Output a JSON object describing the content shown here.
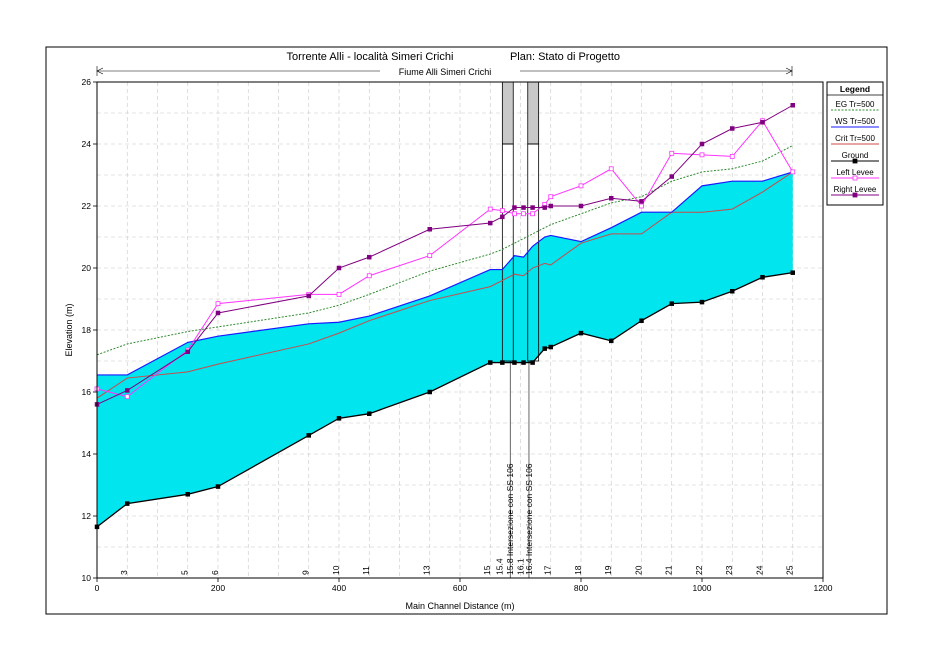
{
  "chart_data": {
    "type": "line",
    "title": "Torrente Alli - località Simeri Crichi",
    "plan_label": "Plan: Stato di Progetto",
    "reach_label": "Fiume Alli Simeri Crichi",
    "xlabel": "Main Channel Distance (m)",
    "ylabel": "Elevation (m)",
    "xlim": [
      0,
      1200
    ],
    "ylim": [
      10,
      26
    ],
    "x_ticks": [
      "0",
      "200",
      "400",
      "600",
      "800",
      "1000",
      "1200"
    ],
    "y_ticks": [
      "10",
      "12",
      "14",
      "16",
      "18",
      "20",
      "22",
      "24",
      "26"
    ],
    "grid": true,
    "legend_position": "right",
    "legend_title": "Legend",
    "colors": {
      "water": "#00e5ee",
      "ws_line": "#1a1aff",
      "eg": "#2e8b2e",
      "crit": "#cc4a4a",
      "ground": "#000000",
      "left_levee": "#ff33ff",
      "right_levee": "#800080",
      "bridge_fill": "#c8c8c8",
      "grid": "#c8c8c8"
    },
    "series": [
      {
        "name": "EG  Tr=500",
        "key": "eg",
        "style": "dotted",
        "x": [
          0,
          50,
          150,
          200,
          350,
          400,
          450,
          550,
          650,
          670,
          690,
          705,
          720,
          740,
          750,
          800,
          850,
          900,
          950,
          1000,
          1050,
          1100,
          1150
        ],
        "y": [
          17.2,
          17.55,
          17.95,
          18.1,
          18.55,
          18.8,
          19.15,
          19.9,
          20.45,
          20.6,
          20.8,
          20.95,
          21.1,
          21.3,
          21.4,
          21.75,
          22.1,
          22.3,
          22.8,
          23.1,
          23.2,
          23.45,
          23.95
        ]
      },
      {
        "name": "WS  Tr=500",
        "key": "ws_line",
        "style": "solid",
        "x": [
          0,
          50,
          150,
          200,
          350,
          400,
          450,
          550,
          650,
          670,
          690,
          705,
          720,
          740,
          750,
          800,
          850,
          900,
          950,
          1000,
          1050,
          1100,
          1150
        ],
        "y": [
          16.55,
          16.55,
          17.6,
          17.8,
          18.2,
          18.25,
          18.45,
          19.1,
          19.95,
          19.95,
          20.4,
          20.35,
          20.7,
          21.0,
          21.05,
          20.85,
          21.3,
          21.8,
          21.8,
          22.65,
          22.8,
          22.8,
          23.1
        ]
      },
      {
        "name": "Crit  Tr=500",
        "key": "crit",
        "style": "solid",
        "x": [
          0,
          50,
          150,
          200,
          350,
          400,
          450,
          550,
          650,
          670,
          690,
          705,
          720,
          740,
          750,
          800,
          850,
          900,
          950,
          1000,
          1050,
          1100,
          1150
        ],
        "y": [
          15.8,
          16.45,
          16.65,
          16.9,
          17.55,
          17.9,
          18.3,
          18.95,
          19.4,
          19.6,
          19.8,
          19.75,
          20.0,
          20.15,
          20.1,
          20.8,
          21.1,
          21.1,
          21.8,
          21.8,
          21.9,
          22.45,
          23.1
        ]
      },
      {
        "name": "Ground",
        "key": "ground",
        "style": "solid",
        "markers": true,
        "x": [
          0,
          50,
          150,
          200,
          350,
          400,
          450,
          550,
          650,
          670,
          690,
          705,
          720,
          740,
          750,
          800,
          850,
          900,
          950,
          1000,
          1050,
          1100,
          1150
        ],
        "y": [
          11.65,
          12.4,
          12.7,
          12.95,
          14.6,
          15.15,
          15.3,
          16.0,
          16.95,
          16.95,
          16.95,
          16.95,
          16.95,
          17.4,
          17.45,
          17.9,
          17.65,
          18.3,
          18.85,
          18.9,
          19.25,
          19.7,
          19.85
        ]
      },
      {
        "name": "Left Levee",
        "key": "left_levee",
        "style": "solid",
        "markers": true,
        "x": [
          0,
          50,
          150,
          200,
          350,
          400,
          450,
          550,
          650,
          670,
          690,
          705,
          720,
          740,
          750,
          800,
          850,
          900,
          950,
          1000,
          1050,
          1100,
          1150
        ],
        "y": [
          16.1,
          15.85,
          17.35,
          18.85,
          19.15,
          19.15,
          19.75,
          20.4,
          21.9,
          21.85,
          21.75,
          21.75,
          21.75,
          22.05,
          22.3,
          22.65,
          23.2,
          22.0,
          23.7,
          23.65,
          23.6,
          24.75,
          23.1
        ]
      },
      {
        "name": "Right Levee",
        "key": "right_levee",
        "style": "solid",
        "markers": true,
        "x": [
          0,
          50,
          150,
          200,
          350,
          400,
          450,
          550,
          650,
          670,
          690,
          705,
          720,
          740,
          750,
          800,
          850,
          900,
          950,
          1000,
          1050,
          1100,
          1150
        ],
        "y": [
          15.6,
          16.05,
          17.3,
          18.55,
          19.1,
          20.0,
          20.35,
          21.25,
          21.45,
          21.65,
          21.95,
          21.95,
          21.95,
          21.95,
          22.0,
          22.0,
          22.25,
          22.15,
          22.95,
          24.0,
          24.5,
          24.7,
          25.25
        ]
      }
    ],
    "station_labels": [
      {
        "text": "3",
        "x": 45
      },
      {
        "text": "5",
        "x": 145
      },
      {
        "text": "6",
        "x": 195
      },
      {
        "text": "9",
        "x": 345
      },
      {
        "text": "10",
        "x": 395
      },
      {
        "text": "11",
        "x": 445
      },
      {
        "text": "13",
        "x": 545
      },
      {
        "text": "15",
        "x": 645
      },
      {
        "text": "15.4",
        "x": 665
      },
      {
        "text": "15.8 Intersezione con SS 106",
        "x": 683
      },
      {
        "text": "16.1",
        "x": 700
      },
      {
        "text": "16.4 Intersezione con SS 106",
        "x": 714
      },
      {
        "text": "17",
        "x": 745
      },
      {
        "text": "18",
        "x": 795
      },
      {
        "text": "19",
        "x": 845
      },
      {
        "text": "20",
        "x": 895
      },
      {
        "text": "21",
        "x": 945
      },
      {
        "text": "22",
        "x": 995
      },
      {
        "text": "23",
        "x": 1045
      },
      {
        "text": "24",
        "x": 1095
      },
      {
        "text": "25",
        "x": 1145
      }
    ],
    "bridges": [
      {
        "x_start": 670,
        "x_end": 688,
        "deck_top": 26.0,
        "deck_bottom": 24.0,
        "bottom": 17.0
      },
      {
        "x_start": 712,
        "x_end": 730,
        "deck_top": 26.0,
        "deck_bottom": 24.0,
        "bottom": 17.0
      }
    ]
  }
}
